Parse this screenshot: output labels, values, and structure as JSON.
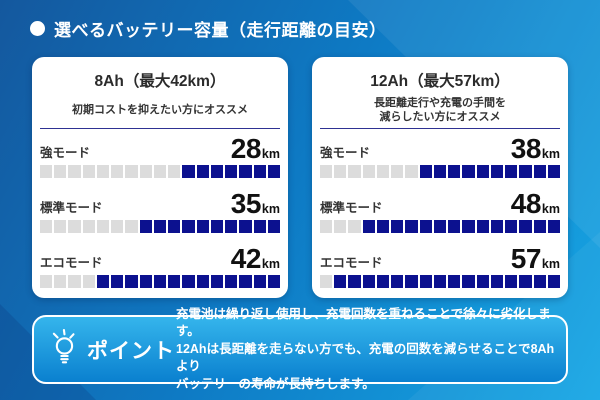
{
  "header": {
    "title": "選べるバッテリー容量（走行距離の目安）"
  },
  "colors": {
    "bar_filled": "#0c118f",
    "bar_empty": "#dcdcdc",
    "divider": "#2e3192",
    "point_box_top": "#35b5ec",
    "point_box_bottom": "#0a80cf"
  },
  "cards": [
    {
      "title": "8Ah（最大42km）",
      "subtitle_lines": [
        "初期コストを抑えたい方にオススメ"
      ],
      "rows": [
        {
          "label": "強モード",
          "value": "28",
          "unit": "km",
          "empty": 10,
          "filled": 7
        },
        {
          "label": "標準モード",
          "value": "35",
          "unit": "km",
          "empty": 7,
          "filled": 10
        },
        {
          "label": "エコモード",
          "value": "42",
          "unit": "km",
          "empty": 4,
          "filled": 13
        }
      ]
    },
    {
      "title": "12Ah（最大57km）",
      "subtitle_lines": [
        "長距離走行や充電の手間を",
        "減らしたい方にオススメ"
      ],
      "rows": [
        {
          "label": "強モード",
          "value": "38",
          "unit": "km",
          "empty": 7,
          "filled": 10
        },
        {
          "label": "標準モード",
          "value": "48",
          "unit": "km",
          "empty": 3,
          "filled": 14
        },
        {
          "label": "エコモード",
          "value": "57",
          "unit": "km",
          "empty": 1,
          "filled": 16
        }
      ]
    }
  ],
  "point_box": {
    "label": "ポイント",
    "lines": [
      "充電池は繰り返し使用し、充電回数を重ねることで徐々に劣化します。",
      "12Ahは長距離を走らない方でも、充電の回数を減らせることで8Ahより",
      "バッテリーの寿命が長持ちします。"
    ]
  },
  "chart_data": [
    {
      "type": "bar",
      "title": "8Ah（最大42km）",
      "subtitle": "初期コストを抑えたい方にオススメ",
      "categories": [
        "強モード",
        "標準モード",
        "エコモード"
      ],
      "values": [
        28,
        35,
        42
      ],
      "unit": "km",
      "segments_total": 17,
      "segments_filled": [
        7,
        10,
        13
      ],
      "xlabel": "",
      "ylabel": "走行距離"
    },
    {
      "type": "bar",
      "title": "12Ah（最大57km）",
      "subtitle": "長距離走行や充電の手間を減らしたい方にオススメ",
      "categories": [
        "強モード",
        "標準モード",
        "エコモード"
      ],
      "values": [
        38,
        48,
        57
      ],
      "unit": "km",
      "segments_total": 17,
      "segments_filled": [
        10,
        14,
        16
      ],
      "xlabel": "",
      "ylabel": "走行距離"
    }
  ]
}
